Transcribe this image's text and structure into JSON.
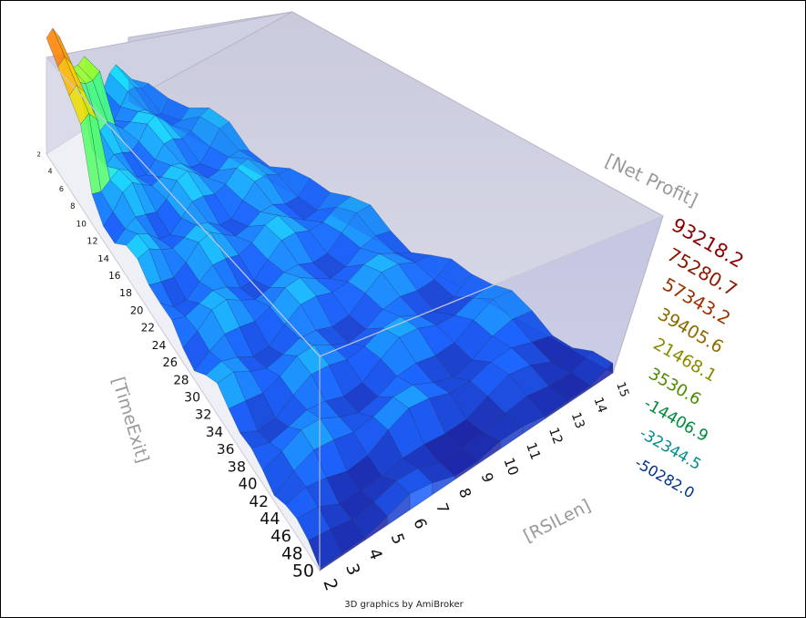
{
  "credit": "3D graphics by AmiBroker",
  "chart_data": {
    "type": "surface3d",
    "title": "",
    "x_axis": {
      "label": "[RSILen]",
      "ticks": [
        "2",
        "3",
        "4",
        "5",
        "6",
        "7",
        "8",
        "9",
        "10",
        "11",
        "12",
        "13",
        "14",
        "15"
      ]
    },
    "y_axis": {
      "label": "[TimeExit]",
      "ticks": [
        "2",
        "4",
        "6",
        "8",
        "10",
        "12",
        "14",
        "16",
        "18",
        "20",
        "22",
        "24",
        "26",
        "28",
        "30",
        "32",
        "34",
        "36",
        "38",
        "40",
        "42",
        "44",
        "46",
        "48",
        "50"
      ]
    },
    "z_axis": {
      "label": "[Net Profit]",
      "ticks": [
        "93218.2",
        "75280.7",
        "57343.2",
        "39405.6",
        "21468.1",
        "3530.6",
        "-14406.9",
        "-32344.5",
        "-50282.0"
      ],
      "tick_colors": [
        "#8b0000",
        "#8b1a00",
        "#9a3300",
        "#8b6b00",
        "#8b8b00",
        "#4b8b00",
        "#008b3c",
        "#008b8b",
        "#00308b"
      ],
      "range": [
        -50282.0,
        93218.2
      ]
    },
    "colormap": [
      "#00008b",
      "#0050ff",
      "#00e0ff",
      "#60ff60",
      "#c0ff00",
      "#ffd000",
      "#ff7000",
      "#d00000"
    ],
    "grid": true
  }
}
